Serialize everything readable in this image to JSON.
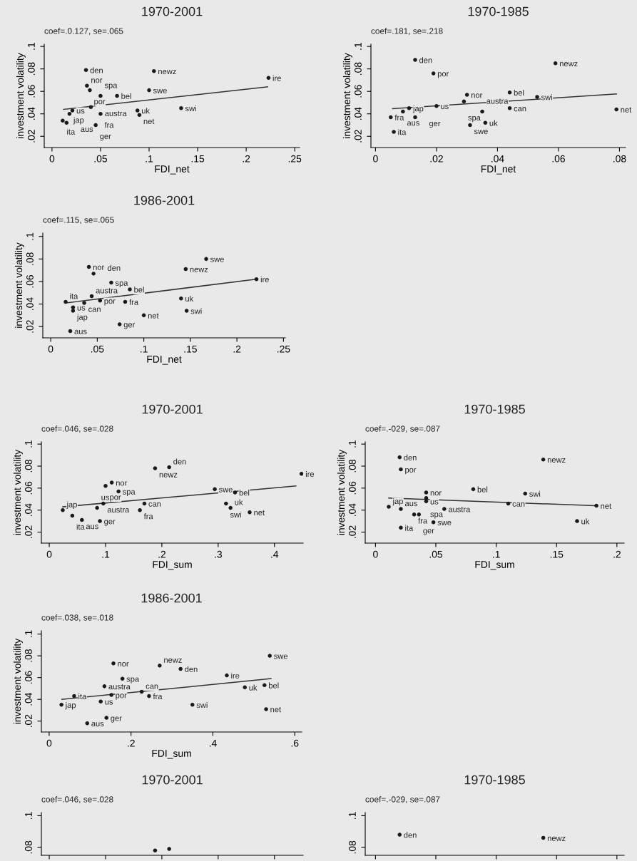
{
  "chart_data": [
    {
      "type": "scatter",
      "title": "1970-2001",
      "xlabel": "FDI_net",
      "ylabel": "investment volatility",
      "marker": "circle",
      "xlim": [
        -0.008,
        0.255
      ],
      "ylim": [
        0.01,
        0.102
      ],
      "xticks": [
        0,
        {
          "value": 0.05,
          "label": ".05"
        },
        {
          "value": 0.1,
          "label": ".1"
        },
        {
          "value": 0.15,
          "label": ".15"
        },
        {
          "value": 0.2,
          "label": ".2"
        },
        {
          "value": 0.25,
          "label": ".25"
        }
      ],
      "yticks": [
        {
          "value": 0.02,
          "label": ".02"
        },
        {
          "value": 0.04,
          "label": ".04"
        },
        {
          "value": 0.06,
          "label": ".06"
        },
        {
          "value": 0.08,
          "label": ".08"
        },
        {
          "value": 0.1,
          "label": ".1"
        }
      ],
      "series": [
        {
          "color": "#1a1a1a",
          "x": [
            0.035,
            0.105,
            0.223,
            0.036,
            0.039,
            0.05,
            0.067,
            0.1,
            0.04,
            0.088,
            0.09,
            0.133,
            0.05,
            0.018,
            0.021,
            0.011,
            0.015,
            0.045
          ],
          "values": [
            0.079,
            0.078,
            0.072,
            0.065,
            0.061,
            0.056,
            0.056,
            0.061,
            0.046,
            0.043,
            0.039,
            0.045,
            0.04,
            0.04,
            0.043,
            0.034,
            0.032,
            0.03
          ]
        },
        {
          "type": "line",
          "marker": "none",
          "color": "#333333",
          "x": [
            0.012,
            0.222
          ],
          "values": [
            0.044,
            0.064
          ]
        }
      ],
      "annotations": [
        "coef=.0.127, se=.065",
        {
          "text": "den",
          "x": 0.035,
          "y": 0.079
        },
        {
          "text": "newz",
          "x": 0.105,
          "y": 0.078
        },
        {
          "text": "ire",
          "x": 0.223,
          "y": 0.072
        },
        {
          "text": "nor",
          "x": 0.036,
          "y": 0.065
        },
        {
          "text": "por",
          "x": 0.039,
          "y": 0.061
        },
        {
          "text": "spa",
          "x": 0.05,
          "y": 0.056
        },
        {
          "text": "bel",
          "x": 0.067,
          "y": 0.056
        },
        {
          "text": "swe",
          "x": 0.1,
          "y": 0.061
        },
        {
          "text": "austra",
          "x": 0.04,
          "y": 0.046
        },
        {
          "text": "uk",
          "x": 0.088,
          "y": 0.043
        },
        {
          "text": "net",
          "x": 0.09,
          "y": 0.039
        },
        {
          "text": "swi",
          "x": 0.133,
          "y": 0.045
        },
        {
          "text": "fra",
          "x": 0.05,
          "y": 0.04
        },
        {
          "text": "jap",
          "x": 0.018,
          "y": 0.04
        },
        {
          "text": "us",
          "x": 0.021,
          "y": 0.043
        },
        {
          "text": "ita",
          "x": 0.011,
          "y": 0.034
        },
        {
          "text": "aus",
          "x": 0.015,
          "y": 0.032
        },
        {
          "text": "ger",
          "x": 0.045,
          "y": 0.03
        }
      ]
    },
    {
      "type": "scatter",
      "title": "1970-1985",
      "xlabel": "FDI_net",
      "ylabel": "investment volatility",
      "marker": "circle",
      "xlim": [
        -0.0015,
        0.082
      ],
      "ylim": [
        0.01,
        0.102
      ],
      "xticks": [
        0,
        {
          "value": 0.02,
          "label": ".02"
        },
        {
          "value": 0.04,
          "label": ".04"
        },
        {
          "value": 0.06,
          "label": ".06"
        },
        {
          "value": 0.08,
          "label": ".08"
        }
      ],
      "yticks": [
        {
          "value": 0.02,
          "label": ".02"
        },
        {
          "value": 0.04,
          "label": ".04"
        },
        {
          "value": 0.06,
          "label": ".06"
        },
        {
          "value": 0.08,
          "label": ".08"
        },
        {
          "value": 0.1,
          "label": ".1"
        }
      ],
      "series": [
        {
          "color": "#1a1a1a",
          "x": [
            0.013,
            0.059,
            0.019,
            0.03,
            0.044,
            0.053,
            0.029,
            0.02,
            0.044,
            0.079,
            0.011,
            0.009,
            0.035,
            0.005,
            0.013,
            0.031,
            0.036,
            0.006
          ],
          "values": [
            0.088,
            0.085,
            0.076,
            0.057,
            0.059,
            0.055,
            0.051,
            0.047,
            0.045,
            0.044,
            0.045,
            0.042,
            0.042,
            0.037,
            0.037,
            0.03,
            0.032,
            0.024
          ]
        },
        {
          "type": "line",
          "marker": "none",
          "color": "#333333",
          "x": [
            0.0056,
            0.079
          ],
          "values": [
            0.0446,
            0.0577
          ]
        }
      ],
      "annotations": [
        "coef=.181, se=.218",
        {
          "text": "den",
          "x": 0.013,
          "y": 0.088
        },
        {
          "text": "newz",
          "x": 0.059,
          "y": 0.085
        },
        {
          "text": "por",
          "x": 0.019,
          "y": 0.076
        },
        {
          "text": "nor",
          "x": 0.03,
          "y": 0.057
        },
        {
          "text": "bel",
          "x": 0.044,
          "y": 0.059
        },
        {
          "text": "swi",
          "x": 0.053,
          "y": 0.055
        },
        {
          "text": "spa",
          "x": 0.029,
          "y": 0.051
        },
        {
          "text": "us",
          "x": 0.02,
          "y": 0.047
        },
        {
          "text": "can",
          "x": 0.044,
          "y": 0.045
        },
        {
          "text": "net",
          "x": 0.079,
          "y": 0.044
        },
        {
          "text": "jap",
          "x": 0.011,
          "y": 0.045
        },
        {
          "text": "aus",
          "x": 0.009,
          "y": 0.042
        },
        {
          "text": "austra",
          "x": 0.035,
          "y": 0.042
        },
        {
          "text": "fra",
          "x": 0.005,
          "y": 0.037
        },
        {
          "text": "ger",
          "x": 0.013,
          "y": 0.037
        },
        {
          "text": "swe",
          "x": 0.031,
          "y": 0.03
        },
        {
          "text": "uk",
          "x": 0.036,
          "y": 0.032
        },
        {
          "text": "ita",
          "x": 0.006,
          "y": 0.024
        }
      ]
    },
    {
      "type": "scatter",
      "title": "1986-2001",
      "xlabel": "FDI_net",
      "ylabel": "investment volatility",
      "marker": "circle",
      "xlim": [
        -0.0085,
        0.252
      ],
      "ylim": [
        0.01,
        0.103
      ],
      "xticks": [
        0,
        {
          "value": 0.05,
          "label": ".05"
        },
        {
          "value": 0.1,
          "label": ".1"
        },
        {
          "value": 0.15,
          "label": ".15"
        },
        {
          "value": 0.2,
          "label": ".2"
        },
        {
          "value": 0.25,
          "label": ".25"
        }
      ],
      "yticks": [
        {
          "value": 0.02,
          "label": ".02"
        },
        {
          "value": 0.04,
          "label": ".04"
        },
        {
          "value": 0.06,
          "label": ".06"
        },
        {
          "value": 0.08,
          "label": ".08"
        },
        {
          "value": 0.1,
          "label": ".1"
        }
      ],
      "series": [
        {
          "color": "#1a1a1a",
          "x": [
            0.167,
            0.145,
            0.221,
            0.041,
            0.046,
            0.065,
            0.044,
            0.085,
            0.14,
            0.036,
            0.053,
            0.08,
            0.016,
            0.024,
            0.024,
            0.1,
            0.146,
            0.074,
            0.021
          ],
          "values": [
            0.08,
            0.071,
            0.062,
            0.073,
            0.067,
            0.059,
            0.047,
            0.053,
            0.045,
            0.041,
            0.043,
            0.042,
            0.042,
            0.037,
            0.034,
            0.03,
            0.034,
            0.022,
            0.016
          ]
        },
        {
          "type": "line",
          "marker": "none",
          "color": "#333333",
          "x": [
            0.017,
            0.22
          ],
          "values": [
            0.041,
            0.062
          ]
        }
      ],
      "annotations": [
        "coef=.115, se=.065",
        {
          "text": "swe",
          "x": 0.167,
          "y": 0.08
        },
        {
          "text": "newz",
          "x": 0.145,
          "y": 0.071
        },
        {
          "text": "ire",
          "x": 0.221,
          "y": 0.062
        },
        {
          "text": "nor",
          "x": 0.041,
          "y": 0.073
        },
        {
          "text": "den",
          "x": 0.046,
          "y": 0.067
        },
        {
          "text": "spa",
          "x": 0.065,
          "y": 0.059
        },
        {
          "text": "austra",
          "x": 0.044,
          "y": 0.047
        },
        {
          "text": "bel",
          "x": 0.085,
          "y": 0.053
        },
        {
          "text": "uk",
          "x": 0.14,
          "y": 0.045
        },
        {
          "text": "can",
          "x": 0.036,
          "y": 0.041
        },
        {
          "text": "por",
          "x": 0.053,
          "y": 0.043
        },
        {
          "text": "fra",
          "x": 0.08,
          "y": 0.042
        },
        {
          "text": "ita",
          "x": 0.016,
          "y": 0.042
        },
        {
          "text": "us",
          "x": 0.024,
          "y": 0.037
        },
        {
          "text": "jap",
          "x": 0.024,
          "y": 0.034
        },
        {
          "text": "net",
          "x": 0.1,
          "y": 0.03
        },
        {
          "text": "swi",
          "x": 0.146,
          "y": 0.034
        },
        {
          "text": "ger",
          "x": 0.074,
          "y": 0.022
        },
        {
          "text": "aus",
          "x": 0.021,
          "y": 0.016
        }
      ]
    },
    {
      "type": "scatter",
      "title": "1970-2001",
      "xlabel": "FDI_sum",
      "ylabel": "investment volatility",
      "marker": "circle",
      "xlim": [
        -0.014,
        0.451
      ],
      "ylim": [
        0.01,
        0.102
      ],
      "xticks": [
        0,
        {
          "value": 0.1,
          "label": ".1"
        },
        {
          "value": 0.2,
          "label": ".2"
        },
        {
          "value": 0.3,
          "label": ".3"
        },
        {
          "value": 0.4,
          "label": ".4"
        }
      ],
      "yticks": [
        {
          "value": 0.02,
          "label": ".02"
        },
        {
          "value": 0.04,
          "label": ".04"
        },
        {
          "value": 0.06,
          "label": ".06"
        },
        {
          "value": 0.08,
          "label": ".08"
        },
        {
          "value": 0.1,
          "label": ".1"
        }
      ],
      "series": [
        {
          "color": "#1a1a1a",
          "x": [
            0.448,
            0.188,
            0.213,
            0.111,
            0.1,
            0.123,
            0.294,
            0.33,
            0.096,
            0.169,
            0.085,
            0.161,
            0.314,
            0.322,
            0.356,
            0.024,
            0.041,
            0.058,
            0.09
          ],
          "values": [
            0.073,
            0.078,
            0.079,
            0.065,
            0.062,
            0.057,
            0.059,
            0.056,
            0.046,
            0.046,
            0.042,
            0.04,
            0.046,
            0.042,
            0.038,
            0.04,
            0.035,
            0.031,
            0.03
          ]
        },
        {
          "type": "line",
          "marker": "none",
          "color": "#333333",
          "x": [
            0.024,
            0.438
          ],
          "values": [
            0.043,
            0.062
          ]
        }
      ],
      "annotations": [
        "coef=.046, se=.028",
        {
          "text": "ire",
          "x": 0.448,
          "y": 0.073
        },
        {
          "text": "newz",
          "x": 0.188,
          "y": 0.078
        },
        {
          "text": "den",
          "x": 0.213,
          "y": 0.079
        },
        {
          "text": "nor",
          "x": 0.111,
          "y": 0.065
        },
        {
          "text": "por",
          "x": 0.1,
          "y": 0.062
        },
        {
          "text": "spa",
          "x": 0.123,
          "y": 0.057
        },
        {
          "text": "swe",
          "x": 0.294,
          "y": 0.059
        },
        {
          "text": "bel",
          "x": 0.33,
          "y": 0.056
        },
        {
          "text": "austra",
          "x": 0.096,
          "y": 0.046
        },
        {
          "text": "can",
          "x": 0.169,
          "y": 0.046
        },
        {
          "text": "us",
          "x": 0.085,
          "y": 0.042
        },
        {
          "text": "fra",
          "x": 0.161,
          "y": 0.04
        },
        {
          "text": "swi",
          "x": 0.314,
          "y": 0.046
        },
        {
          "text": "uk",
          "x": 0.322,
          "y": 0.042
        },
        {
          "text": "net",
          "x": 0.356,
          "y": 0.038
        },
        {
          "text": "jap",
          "x": 0.024,
          "y": 0.04
        },
        {
          "text": "ita",
          "x": 0.041,
          "y": 0.035
        },
        {
          "text": "aus",
          "x": 0.058,
          "y": 0.031
        },
        {
          "text": "ger",
          "x": 0.09,
          "y": 0.03
        }
      ]
    },
    {
      "type": "scatter",
      "title": "1970-1985",
      "xlabel": "FDI_sum",
      "ylabel": "investment volatility",
      "marker": "circle",
      "xlim": [
        -0.0085,
        0.206
      ],
      "ylim": [
        0.01,
        0.102
      ],
      "xticks": [
        0,
        {
          "value": 0.05,
          "label": ".05"
        },
        {
          "value": 0.1,
          "label": ".1"
        },
        {
          "value": 0.15,
          "label": ".15"
        },
        {
          "value": 0.2,
          "label": ".2"
        }
      ],
      "yticks": [
        {
          "value": 0.02,
          "label": ".02"
        },
        {
          "value": 0.04,
          "label": ".04"
        },
        {
          "value": 0.06,
          "label": ".06"
        },
        {
          "value": 0.08,
          "label": ".08"
        },
        {
          "value": 0.1,
          "label": ".1"
        }
      ],
      "series": [
        {
          "color": "#1a1a1a",
          "x": [
            0.02,
            0.139,
            0.021,
            0.042,
            0.081,
            0.124,
            0.042,
            0.042,
            0.11,
            0.183,
            0.011,
            0.021,
            0.057,
            0.032,
            0.036,
            0.048,
            0.167,
            0.021
          ],
          "values": [
            0.088,
            0.086,
            0.077,
            0.056,
            0.059,
            0.055,
            0.051,
            0.048,
            0.046,
            0.044,
            0.043,
            0.041,
            0.041,
            0.036,
            0.036,
            0.029,
            0.03,
            0.024
          ]
        },
        {
          "type": "line",
          "marker": "none",
          "color": "#333333",
          "x": [
            0.011,
            0.182
          ],
          "values": [
            0.051,
            0.044
          ]
        }
      ],
      "annotations": [
        "coef=.-029, se=.087",
        {
          "text": "den",
          "x": 0.02,
          "y": 0.088
        },
        {
          "text": "newz",
          "x": 0.139,
          "y": 0.086
        },
        {
          "text": "por",
          "x": 0.021,
          "y": 0.077
        },
        {
          "text": "nor",
          "x": 0.042,
          "y": 0.056
        },
        {
          "text": "bel",
          "x": 0.081,
          "y": 0.059
        },
        {
          "text": "swi",
          "x": 0.124,
          "y": 0.055
        },
        {
          "text": "spa",
          "x": 0.042,
          "y": 0.051
        },
        {
          "text": "us",
          "x": 0.042,
          "y": 0.048
        },
        {
          "text": "can",
          "x": 0.11,
          "y": 0.046
        },
        {
          "text": "net",
          "x": 0.183,
          "y": 0.044
        },
        {
          "text": "jap",
          "x": 0.011,
          "y": 0.043
        },
        {
          "text": "aus",
          "x": 0.021,
          "y": 0.041
        },
        {
          "text": "austra",
          "x": 0.057,
          "y": 0.041
        },
        {
          "text": "fra",
          "x": 0.032,
          "y": 0.036
        },
        {
          "text": "ger",
          "x": 0.036,
          "y": 0.036
        },
        {
          "text": "swe",
          "x": 0.048,
          "y": 0.029
        },
        {
          "text": "uk",
          "x": 0.167,
          "y": 0.03
        },
        {
          "text": "ita",
          "x": 0.021,
          "y": 0.024
        }
      ]
    },
    {
      "type": "scatter",
      "title": "1986-2001",
      "xlabel": "FDI_sum",
      "ylabel": "investment volatility",
      "marker": "circle",
      "xlim": [
        -0.019,
        0.617
      ],
      "ylim": [
        0.01,
        0.103
      ],
      "xticks": [
        0,
        {
          "value": 0.2,
          "label": ".2"
        },
        {
          "value": 0.4,
          "label": ".4"
        },
        {
          "value": 0.6,
          "label": ".6"
        }
      ],
      "yticks": [
        {
          "value": 0.02,
          "label": ".02"
        },
        {
          "value": 0.04,
          "label": ".04"
        },
        {
          "value": 0.06,
          "label": ".06"
        },
        {
          "value": 0.08,
          "label": ".08"
        },
        {
          "value": 0.1,
          "label": ".1"
        }
      ],
      "series": [
        {
          "color": "#1a1a1a",
          "x": [
            0.539,
            0.157,
            0.27,
            0.321,
            0.434,
            0.179,
            0.135,
            0.526,
            0.478,
            0.226,
            0.152,
            0.244,
            0.061,
            0.126,
            0.03,
            0.35,
            0.53,
            0.14,
            0.093
          ],
          "values": [
            0.08,
            0.073,
            0.071,
            0.068,
            0.062,
            0.059,
            0.052,
            0.053,
            0.051,
            0.047,
            0.044,
            0.043,
            0.043,
            0.038,
            0.035,
            0.035,
            0.031,
            0.023,
            0.018
          ]
        },
        {
          "type": "line",
          "marker": "none",
          "color": "#333333",
          "x": [
            0.031,
            0.542
          ],
          "values": [
            0.04,
            0.059
          ]
        }
      ],
      "annotations": [
        "coef=.038, se=.018",
        {
          "text": "swe",
          "x": 0.539,
          "y": 0.08
        },
        {
          "text": "nor",
          "x": 0.157,
          "y": 0.073
        },
        {
          "text": "newz",
          "x": 0.27,
          "y": 0.071
        },
        {
          "text": "den",
          "x": 0.321,
          "y": 0.068
        },
        {
          "text": "ire",
          "x": 0.434,
          "y": 0.062
        },
        {
          "text": "spa",
          "x": 0.179,
          "y": 0.059
        },
        {
          "text": "austra",
          "x": 0.135,
          "y": 0.052
        },
        {
          "text": "bel",
          "x": 0.526,
          "y": 0.053
        },
        {
          "text": "uk",
          "x": 0.478,
          "y": 0.051
        },
        {
          "text": "can",
          "x": 0.226,
          "y": 0.047
        },
        {
          "text": "por",
          "x": 0.152,
          "y": 0.044
        },
        {
          "text": "fra",
          "x": 0.244,
          "y": 0.043
        },
        {
          "text": "ita",
          "x": 0.061,
          "y": 0.043
        },
        {
          "text": "us",
          "x": 0.126,
          "y": 0.038
        },
        {
          "text": "jap",
          "x": 0.03,
          "y": 0.035
        },
        {
          "text": "swi",
          "x": 0.35,
          "y": 0.035
        },
        {
          "text": "net",
          "x": 0.53,
          "y": 0.031
        },
        {
          "text": "ger",
          "x": 0.14,
          "y": 0.023
        },
        {
          "text": "aus",
          "x": 0.093,
          "y": 0.018
        }
      ]
    },
    {
      "type": "scatter",
      "title": "1970-2001",
      "marker": "circle",
      "tick_labels": "y",
      "xlim": [
        -0.014,
        0.451
      ],
      "ylim": [
        0.075,
        0.102
      ],
      "xticks": [
        {
          "value": 0,
          "label": null
        },
        {
          "value": 0.1,
          "label": null
        },
        {
          "value": 0.2,
          "label": null
        },
        {
          "value": 0.3,
          "label": null
        },
        {
          "value": 0.4,
          "label": null
        }
      ],
      "yticks": [
        {
          "value": 0.08,
          "label": ".08"
        },
        {
          "value": 0.1,
          "label": ".1"
        }
      ],
      "series": [
        {
          "color": "#1a1a1a",
          "x": [
            0.188,
            0.213
          ],
          "values": [
            0.078,
            0.079
          ]
        }
      ],
      "annotations": [
        "coef=.046, se=.028"
      ]
    },
    {
      "type": "scatter",
      "title": "1970-1985",
      "marker": "circle",
      "tick_labels": "y",
      "xlim": [
        -0.0085,
        0.206
      ],
      "ylim": [
        0.075,
        0.102
      ],
      "xticks": [
        {
          "value": 0,
          "label": null
        },
        {
          "value": 0.05,
          "label": null
        },
        {
          "value": 0.1,
          "label": null
        },
        {
          "value": 0.15,
          "label": null
        },
        {
          "value": 0.2,
          "label": null
        }
      ],
      "yticks": [
        {
          "value": 0.08,
          "label": ".08"
        },
        {
          "value": 0.1,
          "label": ".1"
        }
      ],
      "series": [
        {
          "color": "#1a1a1a",
          "x": [
            0.02,
            0.139
          ],
          "values": [
            0.088,
            0.086
          ]
        }
      ],
      "annotations": [
        "coef=.-029, se=.087",
        {
          "text": "den",
          "x": 0.02,
          "y": 0.088
        },
        {
          "text": "newz",
          "x": 0.139,
          "y": 0.086
        }
      ]
    }
  ]
}
